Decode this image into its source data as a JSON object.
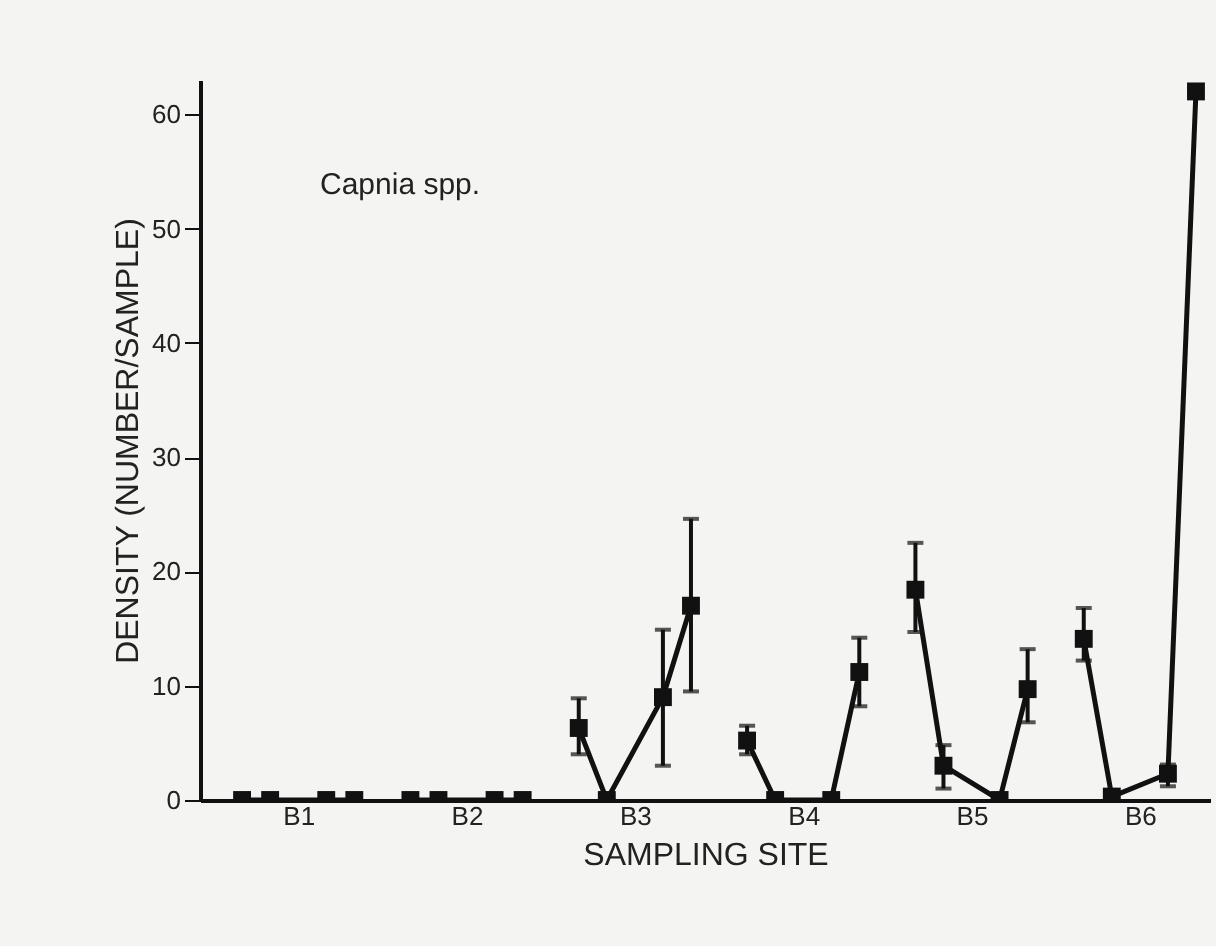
{
  "chart_data": {
    "type": "line",
    "xlabel": "SAMPLING SITE",
    "ylabel": "DENSITY (NUMBER/SAMPLE)",
    "annotations": [
      "Capnia spp."
    ],
    "categories": [
      null,
      null,
      null,
      "B1",
      null,
      null,
      null,
      null,
      null,
      "B2",
      null,
      null,
      null,
      null,
      null,
      "B3",
      null,
      null,
      null,
      null,
      null,
      "B4",
      null,
      null,
      null,
      null,
      null,
      "B5",
      null,
      null,
      null,
      null,
      null,
      "B6",
      null,
      null
    ],
    "ylim": [
      0,
      63
    ],
    "yticks": [
      0,
      10,
      20,
      30,
      40,
      50,
      60
    ],
    "grid": false,
    "marker": "square",
    "line_style": "solid",
    "series": [
      {
        "color": "#111111",
        "values": [
          null,
          0,
          0,
          null,
          0,
          0,
          null,
          null,
          null,
          null,
          null,
          null,
          null,
          null,
          null,
          null,
          null,
          null,
          null,
          null,
          null,
          null,
          null,
          null,
          null,
          null,
          null,
          null,
          null,
          null,
          null,
          null,
          null,
          null,
          null,
          null
        ]
      },
      {
        "color": "#111111",
        "values": [
          null,
          null,
          null,
          null,
          null,
          null,
          null,
          0,
          0,
          null,
          0,
          0,
          null,
          null,
          null,
          null,
          null,
          null,
          null,
          null,
          null,
          null,
          null,
          null,
          null,
          null,
          null,
          null,
          null,
          null,
          null,
          null,
          null,
          null,
          null,
          null
        ]
      },
      {
        "color": "#111111",
        "values": [
          null,
          null,
          null,
          null,
          null,
          null,
          null,
          null,
          null,
          null,
          null,
          null,
          null,
          6.3,
          0,
          null,
          9,
          17,
          null,
          null,
          null,
          null,
          null,
          null,
          null,
          null,
          null,
          null,
          null,
          null,
          null,
          null,
          null,
          null,
          null,
          null
        ],
        "errors": [
          null,
          null,
          null,
          null,
          null,
          null,
          null,
          null,
          null,
          null,
          null,
          null,
          null,
          [
            4,
            8.9
          ],
          null,
          null,
          [
            3,
            14.9
          ],
          [
            9.5,
            24.6
          ],
          null,
          null,
          null,
          null,
          null,
          null,
          null,
          null,
          null,
          null,
          null,
          null,
          null,
          null,
          null,
          null,
          null,
          null
        ]
      },
      {
        "color": "#111111",
        "values": [
          null,
          null,
          null,
          null,
          null,
          null,
          null,
          null,
          null,
          null,
          null,
          null,
          null,
          null,
          null,
          null,
          null,
          null,
          null,
          5.2,
          0,
          null,
          0,
          11.2,
          null,
          null,
          null,
          null,
          null,
          null,
          null,
          null,
          null,
          null,
          null,
          null
        ],
        "errors": [
          null,
          null,
          null,
          null,
          null,
          null,
          null,
          null,
          null,
          null,
          null,
          null,
          null,
          null,
          null,
          null,
          null,
          null,
          null,
          [
            4,
            6.5
          ],
          null,
          null,
          null,
          [
            8.2,
            14.2
          ],
          null,
          null,
          null,
          null,
          null,
          null,
          null,
          null,
          null,
          null,
          null,
          null
        ]
      },
      {
        "color": "#111111",
        "values": [
          null,
          null,
          null,
          null,
          null,
          null,
          null,
          null,
          null,
          null,
          null,
          null,
          null,
          null,
          null,
          null,
          null,
          null,
          null,
          null,
          null,
          null,
          null,
          null,
          null,
          18.4,
          3,
          null,
          0,
          9.7,
          null,
          null,
          null,
          null,
          null,
          null
        ],
        "errors": [
          null,
          null,
          null,
          null,
          null,
          null,
          null,
          null,
          null,
          null,
          null,
          null,
          null,
          null,
          null,
          null,
          null,
          null,
          null,
          null,
          null,
          null,
          null,
          null,
          null,
          [
            14.7,
            22.5
          ],
          [
            1,
            4.8
          ],
          null,
          null,
          [
            6.8,
            13.2
          ],
          null,
          null,
          null,
          null,
          null,
          null
        ]
      },
      {
        "color": "#111111",
        "values": [
          null,
          null,
          null,
          null,
          null,
          null,
          null,
          null,
          null,
          null,
          null,
          null,
          null,
          null,
          null,
          null,
          null,
          null,
          null,
          null,
          null,
          null,
          null,
          null,
          null,
          null,
          null,
          null,
          null,
          null,
          null,
          14.1,
          0.3,
          null,
          2.3,
          62
        ],
        "errors": [
          null,
          null,
          null,
          null,
          null,
          null,
          null,
          null,
          null,
          null,
          null,
          null,
          null,
          null,
          null,
          null,
          null,
          null,
          null,
          null,
          null,
          null,
          null,
          null,
          null,
          null,
          null,
          null,
          null,
          null,
          null,
          [
            12.2,
            16.8
          ],
          null,
          null,
          [
            1.2,
            3.1
          ],
          null
        ]
      }
    ]
  }
}
